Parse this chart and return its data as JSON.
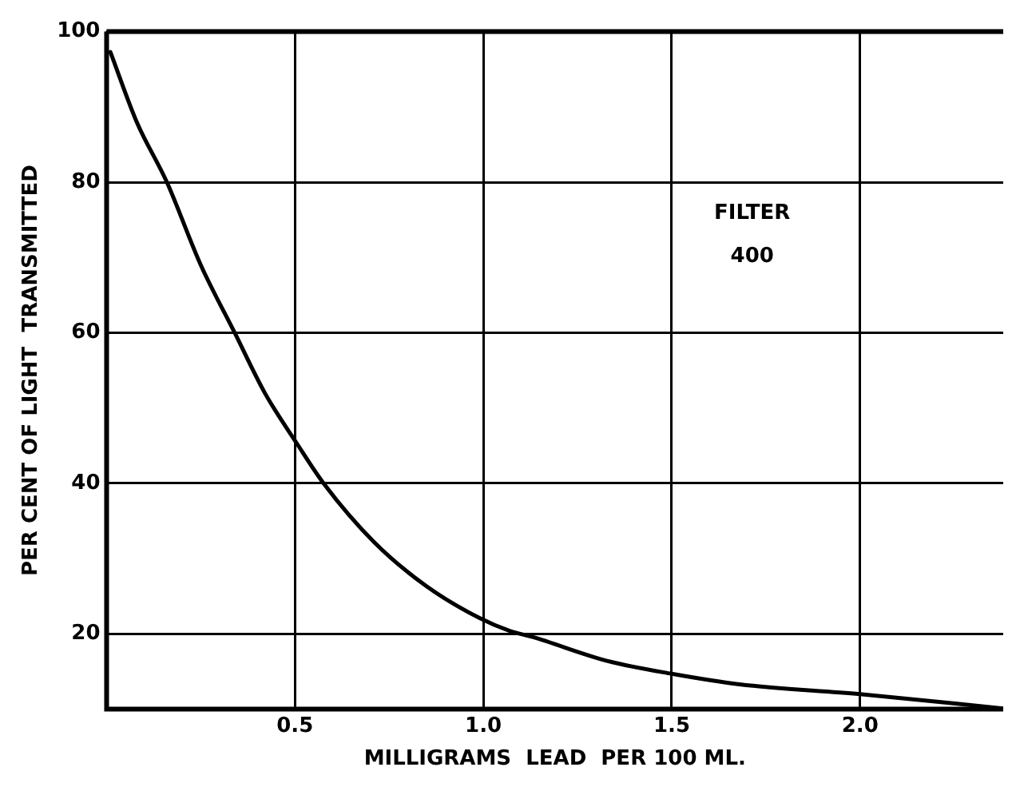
{
  "chart_data": {
    "type": "line",
    "xlabel": "MILLIGRAMS  LEAD  PER 100 ML.",
    "ylabel": "PER CENT OF LIGHT  TRANSMITTED",
    "annotations": [
      "FILTER\n400"
    ],
    "series": [
      {
        "color": "#000000",
        "x": [
          0.01,
          0.08,
          0.16,
          0.25,
          0.34,
          0.42,
          0.505,
          0.576,
          0.71,
          0.85,
          0.99,
          1.07,
          1.13,
          1.33,
          1.5,
          1.68,
          2.0,
          2.38
        ],
        "values": [
          97.3,
          88,
          80,
          69,
          60,
          52,
          45.3,
          40,
          32.2,
          26.3,
          22.1,
          20.4,
          19.6,
          16.4,
          14.7,
          13.3,
          12.0,
          10.1
        ]
      }
    ],
    "xlim": [
      0,
      2.38
    ],
    "xticks": [
      {
        "value": 0,
        "label": null
      },
      0.5,
      {
        "value": 1.0,
        "label": "1.0"
      },
      1.5,
      {
        "value": 2.0,
        "label": "2.0"
      }
    ],
    "ylim": [
      10,
      100
    ],
    "yticks": [
      {
        "value": 10,
        "label": null
      },
      20,
      40,
      60,
      80,
      100
    ],
    "grid": true,
    "legend": false,
    "marker": "none",
    "line_style": "solid"
  }
}
